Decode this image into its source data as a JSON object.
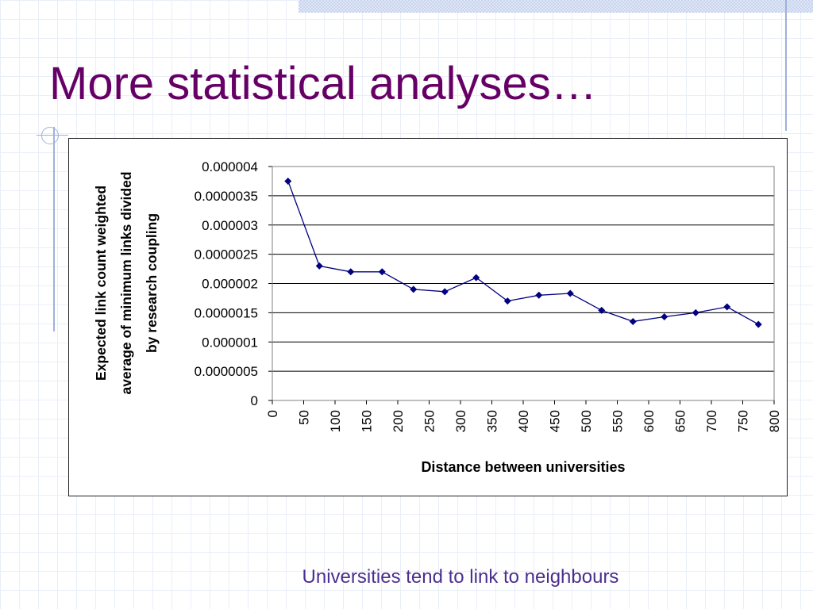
{
  "slide": {
    "title": "More statistical analyses…",
    "caption": "Universities tend to link to neighbours"
  },
  "colors": {
    "title": "#660066",
    "caption": "#4b2f8f",
    "series": "#000080",
    "gridline": "#000000"
  },
  "chart_data": {
    "type": "line",
    "title": "",
    "xlabel": "Distance between universities",
    "ylabel_lines": [
      "Expected link count weighted",
      "average of minimum links divided",
      "by research coupling"
    ],
    "xlim": [
      0,
      800
    ],
    "ylim": [
      0,
      4e-06
    ],
    "x_ticks": [
      "0",
      "50",
      "100",
      "150",
      "200",
      "250",
      "300",
      "350",
      "400",
      "450",
      "500",
      "550",
      "600",
      "650",
      "700",
      "750",
      "800"
    ],
    "y_ticks": [
      "0",
      "0.0000005",
      "0.000001",
      "0.0000015",
      "0.000002",
      "0.0000025",
      "0.000003",
      "0.0000035",
      "0.000004"
    ],
    "grid": "horizontal",
    "legend": "none",
    "x": [
      25,
      75,
      125,
      175,
      225,
      275,
      325,
      375,
      425,
      475,
      525,
      575,
      625,
      675,
      725,
      775
    ],
    "values": [
      3.75e-06,
      2.3e-06,
      2.2e-06,
      2.2e-06,
      1.9e-06,
      1.86e-06,
      2.1e-06,
      1.7e-06,
      1.8e-06,
      1.83e-06,
      1.54e-06,
      1.35e-06,
      1.43e-06,
      1.5e-06,
      1.6e-06,
      1.3e-06
    ]
  }
}
